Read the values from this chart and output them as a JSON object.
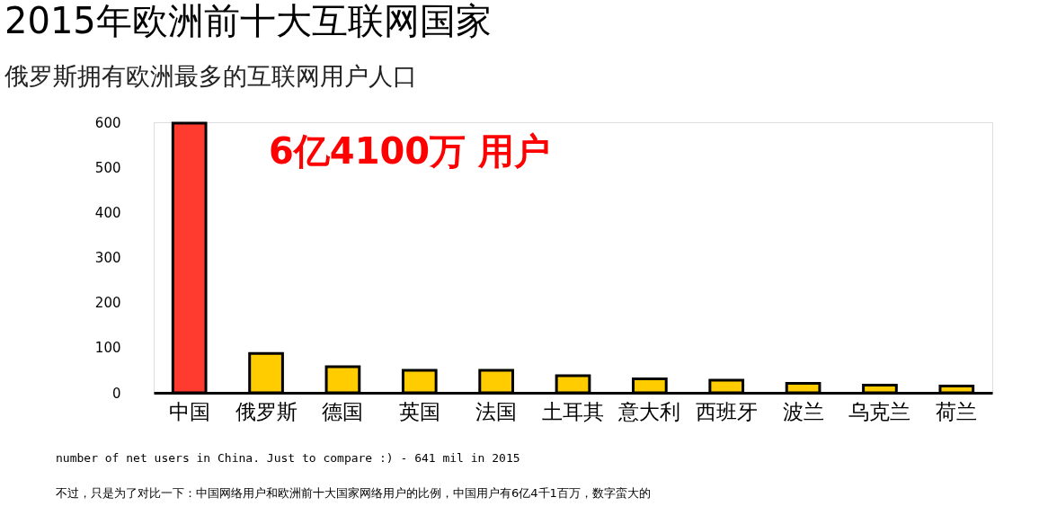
{
  "chart_data": {
    "type": "bar",
    "title": "2015年欧洲前十大互联网国家",
    "subtitle": "俄罗斯拥有欧洲最多的互联网用户人口",
    "categories": [
      "中国",
      "俄罗斯",
      "德国",
      "英国",
      "法国",
      "土耳其",
      "意大利",
      "西班牙",
      "波兰",
      "乌克兰",
      "荷兰"
    ],
    "values": [
      598,
      87,
      58,
      50,
      50,
      38,
      31,
      28,
      21,
      17,
      15
    ],
    "colors": [
      "#ff3b30",
      "#ffcc00",
      "#ffcc00",
      "#ffcc00",
      "#ffcc00",
      "#ffcc00",
      "#ffcc00",
      "#ffcc00",
      "#ffcc00",
      "#ffcc00",
      "#ffcc00"
    ],
    "ylim": [
      0,
      600
    ],
    "yticks": [
      0,
      100,
      200,
      300,
      400,
      500,
      600
    ],
    "grid": false,
    "annotations": [
      "6亿4100万 用户",
      "number of net users in China. Just to compare :) - 641 mil in 2015",
      "不过，只是为了对比一下：中国网络用户和欧洲前十大国家网络用户的比例，中国用户有6亿4千1百万，数字蛮大的"
    ]
  }
}
